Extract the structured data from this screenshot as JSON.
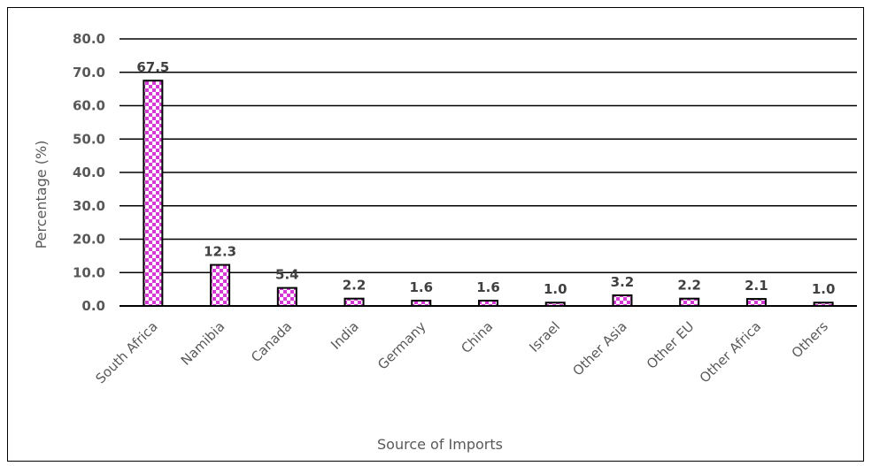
{
  "chart_data": {
    "type": "bar",
    "xlabel": "Source of Imports",
    "ylabel": "Percentage (%)",
    "ylim": [
      0,
      80
    ],
    "yticks": [
      "0.0",
      "10.0",
      "20.0",
      "30.0",
      "40.0",
      "50.0",
      "60.0",
      "70.0",
      "80.0"
    ],
    "grid": true,
    "categories": [
      "South Africa",
      "Namibia",
      "Canada",
      "India",
      "Germany",
      "China",
      "Israel",
      "Other Asia",
      "Other EU",
      "Other Africa",
      "Others"
    ],
    "values": [
      67.5,
      12.3,
      5.4,
      2.2,
      1.6,
      1.6,
      1.0,
      3.2,
      2.2,
      2.1,
      1.0
    ],
    "data_labels": [
      "67.5",
      "12.3",
      "5.4",
      "2.2",
      "1.6",
      "1.6",
      "1.0",
      "3.2",
      "2.2",
      "2.1",
      "1.0"
    ],
    "bar_pattern": "checkerboard",
    "colors": {
      "bar_fill": "#d63ad6",
      "bar_outline": "#000000",
      "grid": "#000000"
    }
  }
}
